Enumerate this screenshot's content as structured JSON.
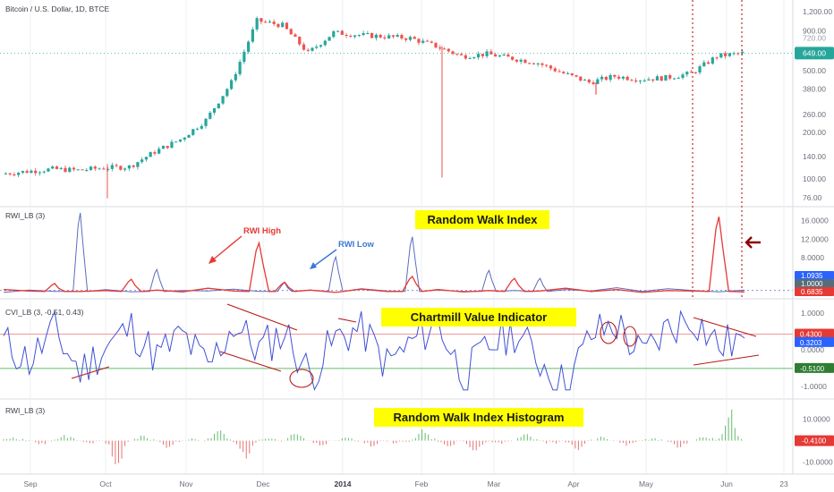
{
  "header": {
    "title": "Bitcoin / U.S. Dollar, 1D, BTCE"
  },
  "colors": {
    "up": "#26a69a",
    "down": "#ef5350",
    "rwi_high": "#e53935",
    "rwi_low": "#5c6bc0",
    "cvi": "#3f51d6",
    "grid": "#eceff3",
    "axis_text": "#6b6f7a",
    "highlight": "#ffff00",
    "vline": "#c62828",
    "arrow": "#8b0000"
  },
  "x_axis": {
    "labels": [
      "Sep",
      "Oct",
      "Nov",
      "Dec",
      "2014",
      "Feb",
      "Mar",
      "Apr",
      "May",
      "Jun",
      "23"
    ]
  },
  "price_pane": {
    "current_price_label": "649.00",
    "ticks": [
      "1,200.00",
      "900.00",
      "720.00",
      "500.00",
      "380.00",
      "260.00",
      "200.00",
      "140.00",
      "100.00",
      "76.00"
    ]
  },
  "rwi_pane": {
    "title": "RWI_LB (3)",
    "annotation": "Random Walk Index",
    "callout_high": "RWI High",
    "callout_low": "RWI Low",
    "ticks": [
      "16.0000",
      "12.0000",
      "8.0000",
      "4.0000"
    ],
    "badges": [
      "1.0935",
      "1.0000",
      "0.6835"
    ]
  },
  "cvi_pane": {
    "title": "CVI_LB (3, -0.51, 0.43)",
    "annotation": "Chartmill Value Indicator",
    "ticks": [
      "1.0000",
      "0.5000",
      "0.0000",
      "-0.5000",
      "-1.0000"
    ],
    "badges": [
      "0.4300",
      "0.3203",
      "-0.5100"
    ]
  },
  "hist_pane": {
    "title": "RWI_LB (3)",
    "annotation": "Random Walk Index Histogram",
    "ticks": [
      "10.0000",
      "0.0000",
      "-10.0000"
    ],
    "badge": "-0.4100"
  },
  "chart_data": [
    {
      "type": "line",
      "description": "Candlestick price series, approximate close per period",
      "yscale": "log",
      "ylim": [
        70,
        1250
      ],
      "x": [
        "Aug-26",
        "Sep-05",
        "Sep-15",
        "Sep-25",
        "Oct-05",
        "Oct-15",
        "Oct-25",
        "Nov-04",
        "Nov-14",
        "Nov-24",
        "Dec-04",
        "Dec-14",
        "Dec-24",
        "Jan-03",
        "Jan-13",
        "Jan-23",
        "Feb-02",
        "Feb-12",
        "Feb-22",
        "Mar-04",
        "Mar-14",
        "Mar-24",
        "Apr-03",
        "Apr-13",
        "Apr-23",
        "May-03",
        "May-13",
        "May-23",
        "Jun-02",
        "Jun-07"
      ],
      "values": [
        108,
        112,
        116,
        114,
        118,
        120,
        150,
        180,
        240,
        420,
        1050,
        980,
        650,
        880,
        850,
        830,
        810,
        720,
        620,
        640,
        600,
        560,
        480,
        420,
        460,
        440,
        450,
        480,
        620,
        649
      ]
    },
    {
      "type": "line",
      "description": "RWI_LB (3) - Random Walk Index",
      "ylim": [
        0,
        18
      ],
      "series": [
        {
          "name": "RWI High",
          "values": [
            1.2,
            0.9,
            2.5,
            0.8,
            1.0,
            3.4,
            1.1,
            0.7,
            1.5,
            0.9,
            11.2,
            2.8,
            1.1,
            0.6,
            1.3,
            0.8,
            4.0,
            1.2,
            0.7,
            1.0,
            3.6,
            0.9,
            1.5,
            0.8,
            1.2,
            0.6,
            1.0,
            0.9,
            16.8,
            0.68
          ]
        },
        {
          "name": "RWI Low",
          "values": [
            0.6,
            1.1,
            0.8,
            17.6,
            1.2,
            0.7,
            5.5,
            1.0,
            0.9,
            1.3,
            0.8,
            2.7,
            1.1,
            8.2,
            1.4,
            0.9,
            12.5,
            1.1,
            0.8,
            5.3,
            1.0,
            3.6,
            1.2,
            0.9,
            1.6,
            0.8,
            1.4,
            1.0,
            0.7,
            1.09
          ]
        }
      ]
    },
    {
      "type": "line",
      "description": "CVI_LB (3, -0.51, 0.43) - Chartmill Value Indicator",
      "ylim": [
        -1.2,
        1.2
      ],
      "thresholds": [
        0.43,
        -0.51
      ],
      "values": [
        0.2,
        -0.3,
        0.5,
        -0.6,
        0.1,
        0.6,
        -0.2,
        0.4,
        -0.5,
        0.7,
        0.0,
        0.5,
        -0.7,
        0.3,
        0.6,
        -0.4,
        0.2,
        0.8,
        -0.8,
        0.1,
        0.5,
        -0.3,
        -1.0,
        0.4,
        0.7,
        -0.2,
        0.6,
        0.9,
        0.1,
        0.32
      ]
    },
    {
      "type": "bar",
      "description": "RWI_LB (3) - Random Walk Index Histogram",
      "ylim": [
        -14,
        17
      ],
      "values": [
        1.5,
        -2.0,
        3.0,
        -1.0,
        -13.5,
        2.5,
        -4.0,
        1.0,
        6.0,
        -9.0,
        2.0,
        4.5,
        -2.5,
        1.5,
        -3.0,
        -1.0,
        5.0,
        -2.5,
        -6.0,
        -1.0,
        3.5,
        -1.5,
        -4.5,
        2.0,
        -2.0,
        1.0,
        -3.0,
        2.5,
        14.0,
        -0.41
      ]
    }
  ]
}
